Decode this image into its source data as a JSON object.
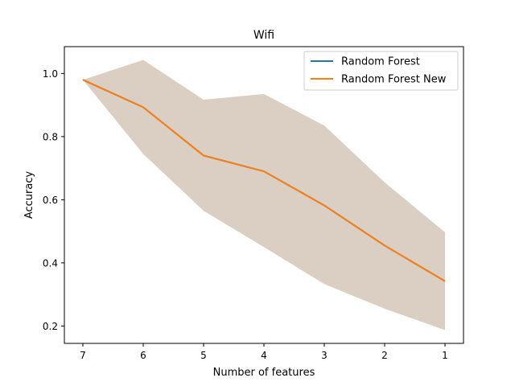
{
  "chart_data": {
    "type": "line",
    "title": "Wifi",
    "xlabel": "Number of features",
    "ylabel": "Accuracy",
    "x": [
      7,
      6,
      5,
      4,
      3,
      2,
      1
    ],
    "x_ticks": [
      "7",
      "6",
      "5",
      "4",
      "3",
      "2",
      "1"
    ],
    "x_reversed": true,
    "y_ticks": [
      "0.2",
      "0.4",
      "0.6",
      "0.8",
      "1.0"
    ],
    "y_tick_values": [
      0.2,
      0.4,
      0.6,
      0.8,
      1.0
    ],
    "ylim": [
      0.145,
      1.085
    ],
    "grid": false,
    "legend_position": "upper right",
    "series": [
      {
        "name": "Random Forest",
        "color": "#1f77b4",
        "values": [
          0.98,
          0.893,
          0.74,
          0.69,
          0.582,
          0.455,
          0.342
        ]
      },
      {
        "name": "Random Forest New",
        "color": "#ff7f0e",
        "values": [
          0.98,
          0.893,
          0.74,
          0.69,
          0.582,
          0.455,
          0.342
        ]
      }
    ],
    "band": {
      "color": "#dbcfc3",
      "upper": [
        0.98,
        1.043,
        0.917,
        0.935,
        0.835,
        0.655,
        0.497
      ],
      "lower": [
        0.98,
        0.745,
        0.565,
        0.45,
        0.333,
        0.255,
        0.187
      ]
    }
  }
}
